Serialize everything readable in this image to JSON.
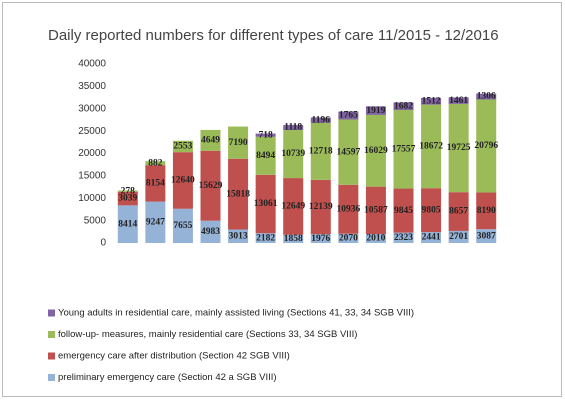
{
  "chart_data": {
    "type": "stacked-bar",
    "title": "Daily reported numbers for different types of care 11/2015 - 12/2016",
    "categories": [
      null,
      null,
      null,
      null,
      null,
      null,
      null,
      null,
      null,
      null,
      null,
      null,
      null,
      null
    ],
    "series": [
      {
        "name": "preliminary emergency care (Section 42 a SGB VIII)",
        "color": "#95b3d7",
        "values": [
          8414,
          9247,
          7655,
          4983,
          3013,
          2182,
          1858,
          1976,
          2070,
          2010,
          2323,
          2441,
          2701,
          3087
        ]
      },
      {
        "name": "emergency care after distribution (Section 42 SGB VIII)",
        "color": "#c0504d",
        "values": [
          3039,
          8154,
          12640,
          15629,
          15818,
          13061,
          12649,
          12139,
          10936,
          10587,
          9845,
          9805,
          8657,
          8190
        ]
      },
      {
        "name": "follow-up- measures, mainly  residential care (Sections 33, 34 SGB VIII)",
        "color": "#9bbb59",
        "values": [
          278,
          882,
          2553,
          4649,
          7190,
          8494,
          10739,
          12718,
          14597,
          16029,
          17557,
          18672,
          19725,
          20796
        ]
      },
      {
        "name": "Young adults in residential care, mainly assisted living (Sections 41, 33, 34 SGB VIII)",
        "color": "#8064a2",
        "values": [
          null,
          null,
          null,
          null,
          null,
          718,
          1118,
          1196,
          1765,
          1919,
          1682,
          1512,
          1461,
          1306
        ]
      }
    ],
    "ylim": [
      0,
      40000
    ],
    "yticks": [
      0,
      5000,
      10000,
      15000,
      20000,
      25000,
      30000,
      35000,
      40000
    ],
    "grid": false
  }
}
